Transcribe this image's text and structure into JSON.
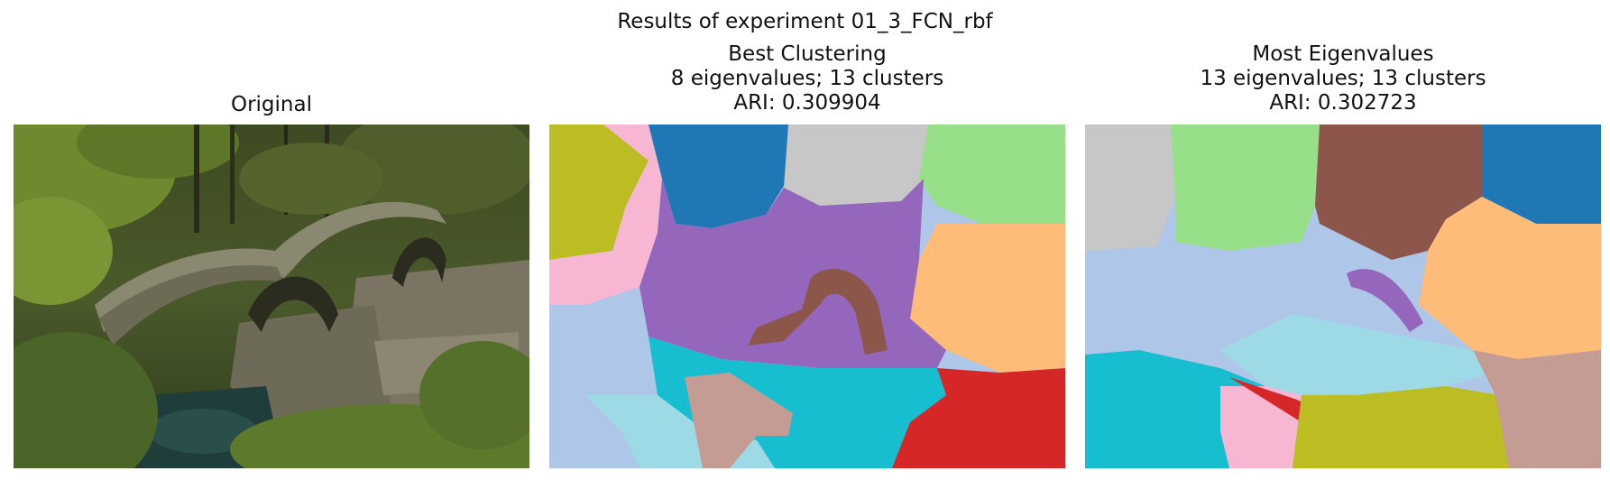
{
  "figure": {
    "title": "Results of experiment 01_3_FCN_rbf"
  },
  "panels": [
    {
      "title": "Original"
    },
    {
      "title_lines": [
        "Best Clustering",
        "8 eigenvalues; 13 clusters",
        "ARI: 0.309904"
      ]
    },
    {
      "title_lines": [
        "Most Eigenvalues",
        "13 eigenvalues; 13 clusters",
        "ARI: 0.302723"
      ]
    }
  ],
  "colors": {
    "tab_blue": "#1f77b4",
    "tab_lightblue": "#aec7e8",
    "tab_orange_light": "#ffbb78",
    "tab_green_light": "#98df8a",
    "tab_red": "#d62728",
    "tab_purple": "#9467bd",
    "tab_brown": "#8c564b",
    "tab_pink_light": "#f7b6d2",
    "tab_gray_light": "#c7c7c7",
    "tab_olive": "#bcbd22",
    "tab_cyan": "#17becf",
    "tab_cyan_light": "#9edae5",
    "tab_rose": "#c49c94"
  }
}
